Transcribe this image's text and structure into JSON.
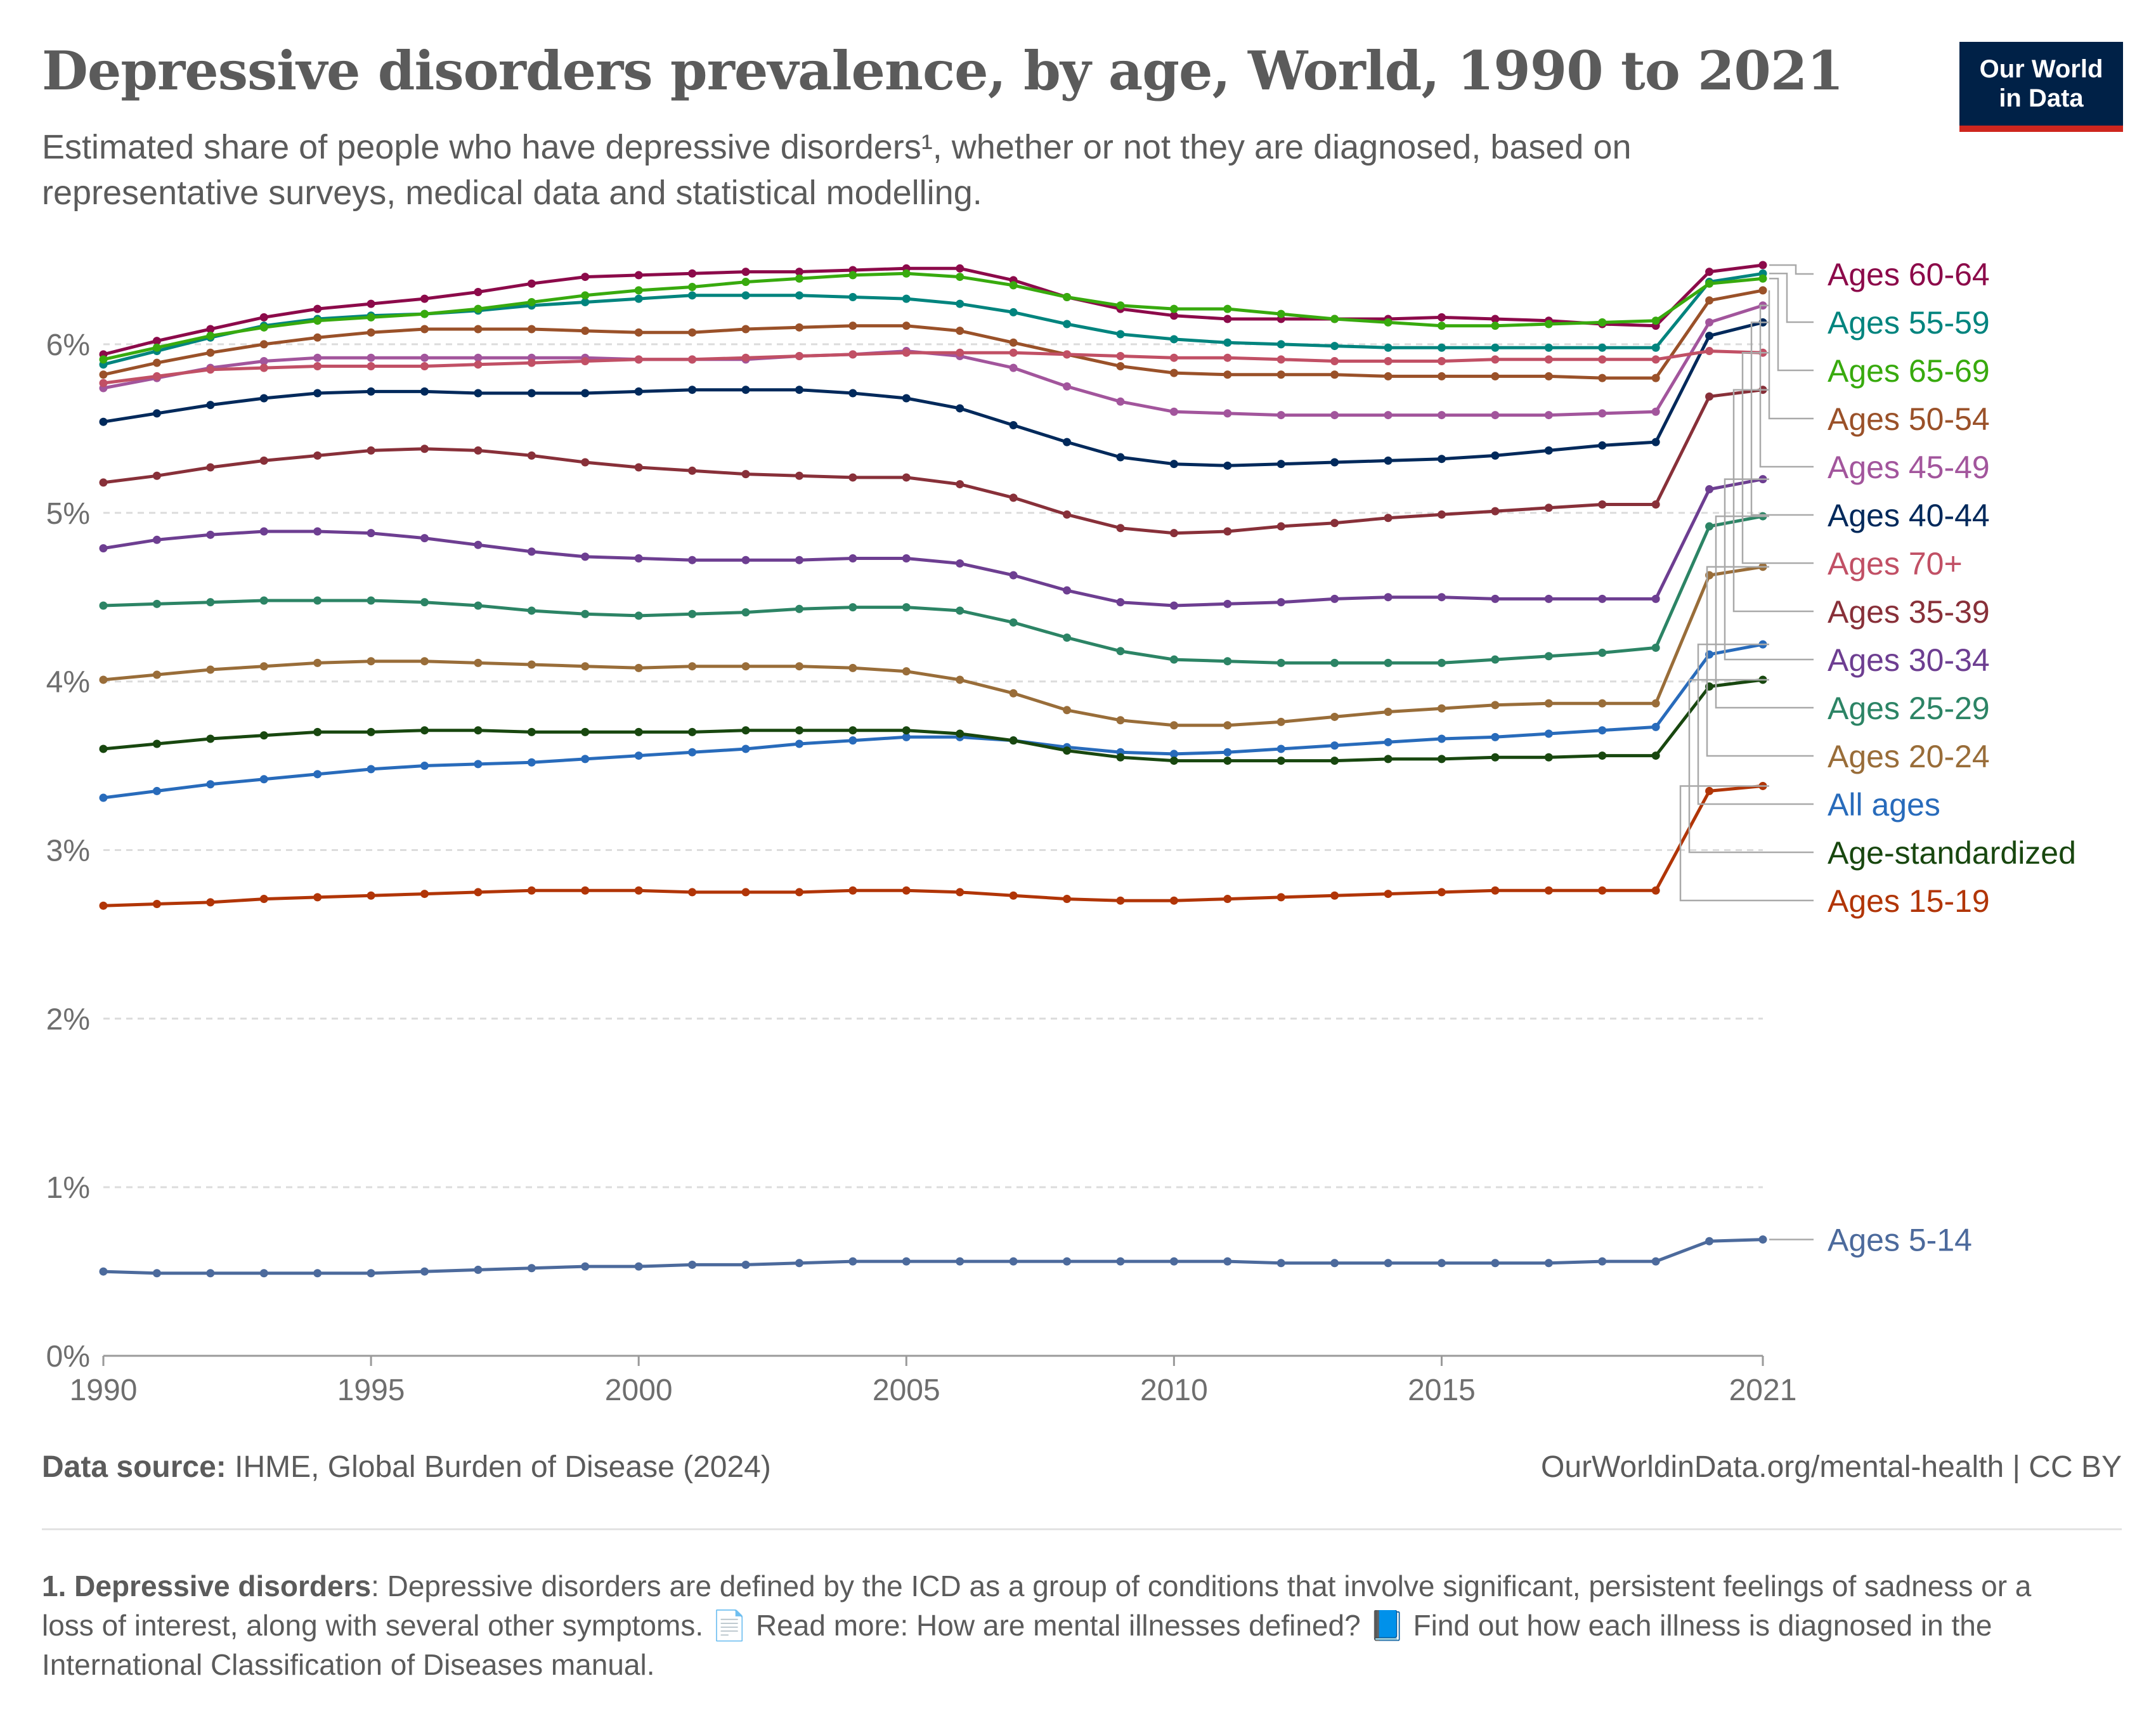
{
  "header": {
    "title": "Depressive disorders prevalence, by age, World, 1990 to 2021",
    "subtitle": "Estimated share of people who have depressive disorders¹, whether or not they are diagnosed, based on representative surveys, medical data and statistical modelling.",
    "logo_line1": "Our World",
    "logo_line2": "in Data",
    "logo_bg": "#002147",
    "logo_accent": "#ce261e"
  },
  "footer": {
    "source_label": "Data source:",
    "source_text": "IHME, Global Burden of Disease (2024)",
    "url_text": "OurWorldinData.org/mental-health | CC BY",
    "note_number": "1. Depressive disorders",
    "note_text": ": Depressive disorders are defined by the ICD as a group of conditions that involve significant, persistent feelings of sadness or a loss of interest, along with several other symptoms. 📄 Read more: How are mental illnesses defined? 📘 Find out how each illness is diagnosed in the International Classification of Diseases manual."
  },
  "chart_data": {
    "type": "line",
    "x_ticks": [
      1990,
      1995,
      2000,
      2005,
      2010,
      2015,
      2021
    ],
    "y_ticks": [
      "0%",
      "1%",
      "2%",
      "3%",
      "4%",
      "5%",
      "6%"
    ],
    "ylim": [
      0,
      6.5
    ],
    "xlim": [
      1990,
      2021
    ],
    "grid": true,
    "legend": "right, labels at line ends",
    "series": [
      {
        "name": "Ages 60-64",
        "color": "#8c0a4a",
        "values": [
          5.94,
          6.02,
          6.09,
          6.16,
          6.21,
          6.24,
          6.27,
          6.31,
          6.36,
          6.4,
          6.41,
          6.42,
          6.43,
          6.43,
          6.44,
          6.45,
          6.45,
          6.38,
          6.28,
          6.21,
          6.17,
          6.15,
          6.15,
          6.15,
          6.15,
          6.16,
          6.15,
          6.14,
          6.12,
          6.11,
          6.43,
          6.47
        ]
      },
      {
        "name": "Ages 55-59",
        "color": "#00847e",
        "values": [
          5.88,
          5.96,
          6.04,
          6.11,
          6.15,
          6.17,
          6.18,
          6.2,
          6.23,
          6.25,
          6.27,
          6.29,
          6.29,
          6.29,
          6.28,
          6.27,
          6.24,
          6.19,
          6.12,
          6.06,
          6.03,
          6.01,
          6.0,
          5.99,
          5.98,
          5.98,
          5.98,
          5.98,
          5.98,
          5.98,
          6.37,
          6.42
        ]
      },
      {
        "name": "Ages 65-69",
        "color": "#38aa0e",
        "values": [
          5.91,
          5.98,
          6.05,
          6.1,
          6.14,
          6.16,
          6.18,
          6.21,
          6.25,
          6.29,
          6.32,
          6.34,
          6.37,
          6.39,
          6.41,
          6.42,
          6.4,
          6.35,
          6.28,
          6.23,
          6.21,
          6.21,
          6.18,
          6.15,
          6.13,
          6.11,
          6.11,
          6.12,
          6.13,
          6.14,
          6.36,
          6.39
        ]
      },
      {
        "name": "Ages 50-54",
        "color": "#9a5129",
        "values": [
          5.82,
          5.89,
          5.95,
          6.0,
          6.04,
          6.07,
          6.09,
          6.09,
          6.09,
          6.08,
          6.07,
          6.07,
          6.09,
          6.1,
          6.11,
          6.11,
          6.08,
          6.01,
          5.94,
          5.87,
          5.83,
          5.82,
          5.82,
          5.82,
          5.81,
          5.81,
          5.81,
          5.81,
          5.8,
          5.8,
          6.26,
          6.32
        ]
      },
      {
        "name": "Ages 45-49",
        "color": "#a2559c",
        "values": [
          5.74,
          5.8,
          5.86,
          5.9,
          5.92,
          5.92,
          5.92,
          5.92,
          5.92,
          5.92,
          5.91,
          5.91,
          5.91,
          5.93,
          5.94,
          5.96,
          5.93,
          5.86,
          5.75,
          5.66,
          5.6,
          5.59,
          5.58,
          5.58,
          5.58,
          5.58,
          5.58,
          5.58,
          5.59,
          5.6,
          6.13,
          6.23
        ]
      },
      {
        "name": "Ages 40-44",
        "color": "#00295b",
        "values": [
          5.54,
          5.59,
          5.64,
          5.68,
          5.71,
          5.72,
          5.72,
          5.71,
          5.71,
          5.71,
          5.72,
          5.73,
          5.73,
          5.73,
          5.71,
          5.68,
          5.62,
          5.52,
          5.42,
          5.33,
          5.29,
          5.28,
          5.29,
          5.3,
          5.31,
          5.32,
          5.34,
          5.37,
          5.4,
          5.42,
          6.05,
          6.13
        ]
      },
      {
        "name": "Ages 70+",
        "color": "#c15065",
        "values": [
          5.77,
          5.81,
          5.85,
          5.86,
          5.87,
          5.87,
          5.87,
          5.88,
          5.89,
          5.9,
          5.91,
          5.91,
          5.92,
          5.93,
          5.94,
          5.95,
          5.95,
          5.95,
          5.94,
          5.93,
          5.92,
          5.92,
          5.91,
          5.9,
          5.9,
          5.9,
          5.91,
          5.91,
          5.91,
          5.91,
          5.96,
          5.95
        ]
      },
      {
        "name": "Ages 35-39",
        "color": "#883039",
        "values": [
          5.18,
          5.22,
          5.27,
          5.31,
          5.34,
          5.37,
          5.38,
          5.37,
          5.34,
          5.3,
          5.27,
          5.25,
          5.23,
          5.22,
          5.21,
          5.21,
          5.17,
          5.09,
          4.99,
          4.91,
          4.88,
          4.89,
          4.92,
          4.94,
          4.97,
          4.99,
          5.01,
          5.03,
          5.05,
          5.05,
          5.69,
          5.73
        ]
      },
      {
        "name": "Ages 30-34",
        "color": "#6d3e91",
        "values": [
          4.79,
          4.84,
          4.87,
          4.89,
          4.89,
          4.88,
          4.85,
          4.81,
          4.77,
          4.74,
          4.73,
          4.72,
          4.72,
          4.72,
          4.73,
          4.73,
          4.7,
          4.63,
          4.54,
          4.47,
          4.45,
          4.46,
          4.47,
          4.49,
          4.5,
          4.5,
          4.49,
          4.49,
          4.49,
          4.49,
          5.14,
          5.2
        ]
      },
      {
        "name": "Ages 25-29",
        "color": "#2c8465",
        "values": [
          4.45,
          4.46,
          4.47,
          4.48,
          4.48,
          4.48,
          4.47,
          4.45,
          4.42,
          4.4,
          4.39,
          4.4,
          4.41,
          4.43,
          4.44,
          4.44,
          4.42,
          4.35,
          4.26,
          4.18,
          4.13,
          4.12,
          4.11,
          4.11,
          4.11,
          4.11,
          4.13,
          4.15,
          4.17,
          4.2,
          4.92,
          4.98
        ]
      },
      {
        "name": "Ages 20-24",
        "color": "#996d39",
        "values": [
          4.01,
          4.04,
          4.07,
          4.09,
          4.11,
          4.12,
          4.12,
          4.11,
          4.1,
          4.09,
          4.08,
          4.09,
          4.09,
          4.09,
          4.08,
          4.06,
          4.01,
          3.93,
          3.83,
          3.77,
          3.74,
          3.74,
          3.76,
          3.79,
          3.82,
          3.84,
          3.86,
          3.87,
          3.87,
          3.87,
          4.63,
          4.68
        ]
      },
      {
        "name": "All ages",
        "color": "#286bbb",
        "values": [
          3.31,
          3.35,
          3.39,
          3.42,
          3.45,
          3.48,
          3.5,
          3.51,
          3.52,
          3.54,
          3.56,
          3.58,
          3.6,
          3.63,
          3.65,
          3.67,
          3.67,
          3.65,
          3.61,
          3.58,
          3.57,
          3.58,
          3.6,
          3.62,
          3.64,
          3.66,
          3.67,
          3.69,
          3.71,
          3.73,
          4.16,
          4.22
        ]
      },
      {
        "name": "Age-standardized",
        "color": "#18470f",
        "values": [
          3.6,
          3.63,
          3.66,
          3.68,
          3.7,
          3.7,
          3.71,
          3.71,
          3.7,
          3.7,
          3.7,
          3.7,
          3.71,
          3.71,
          3.71,
          3.71,
          3.69,
          3.65,
          3.59,
          3.55,
          3.53,
          3.53,
          3.53,
          3.53,
          3.54,
          3.54,
          3.55,
          3.55,
          3.56,
          3.56,
          3.97,
          4.01
        ]
      },
      {
        "name": "Ages 15-19",
        "color": "#b13507",
        "values": [
          2.67,
          2.68,
          2.69,
          2.71,
          2.72,
          2.73,
          2.74,
          2.75,
          2.76,
          2.76,
          2.76,
          2.75,
          2.75,
          2.75,
          2.76,
          2.76,
          2.75,
          2.73,
          2.71,
          2.7,
          2.7,
          2.71,
          2.72,
          2.73,
          2.74,
          2.75,
          2.76,
          2.76,
          2.76,
          2.76,
          3.35,
          3.38
        ]
      },
      {
        "name": "Ages 5-14",
        "color": "#4c6a9c",
        "values": [
          0.5,
          0.49,
          0.49,
          0.49,
          0.49,
          0.49,
          0.5,
          0.51,
          0.52,
          0.53,
          0.53,
          0.54,
          0.54,
          0.55,
          0.56,
          0.56,
          0.56,
          0.56,
          0.56,
          0.56,
          0.56,
          0.56,
          0.55,
          0.55,
          0.55,
          0.55,
          0.55,
          0.55,
          0.56,
          0.56,
          0.68,
          0.69
        ]
      }
    ]
  }
}
